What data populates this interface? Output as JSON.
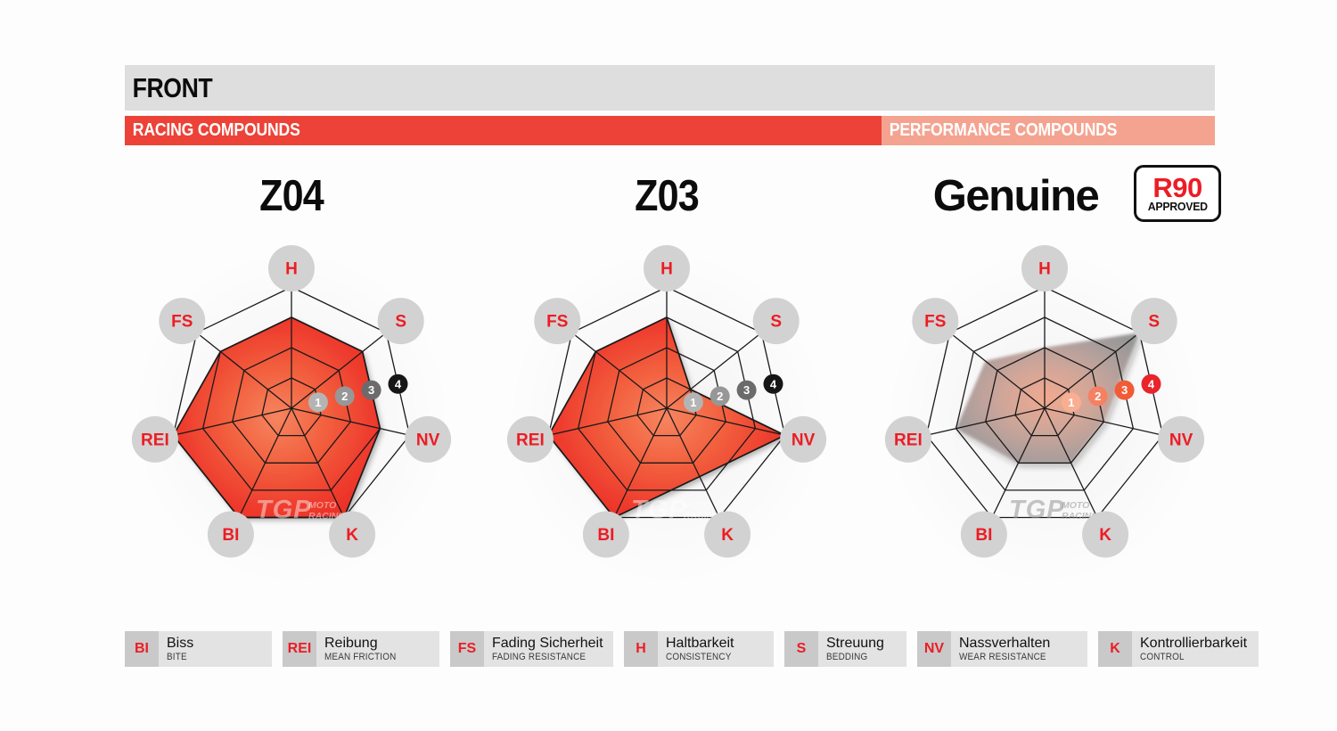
{
  "header": {
    "title": "FRONT",
    "racing_label": "RACING COMPOUNDS",
    "performance_label": "PERFORMANCE COMPOUNDS"
  },
  "r90_badge": {
    "line1": "R90",
    "line2": "APPROVED"
  },
  "watermark": {
    "tgp": "TGP",
    "moto": "MOTO",
    "racing": "RACING"
  },
  "scale_markers": [
    "1",
    "2",
    "3",
    "4"
  ],
  "colors": {
    "header_bar": "#dedede",
    "racing_red": "#ec4237",
    "performance_salmon": "#f4a390",
    "label_red": "#ed1c24",
    "label_circle": "#d2d2d2",
    "web_line": "#1a1a1a",
    "racing_fill_stops": [
      "#f6855f",
      "#f25f3e",
      "#ee3b2d",
      "#e92b24"
    ],
    "performance_fill_stops": [
      "#f2a387",
      "#cda092",
      "#a69795",
      "#8f8f8f"
    ],
    "racing_badges": [
      "#b4b4b4",
      "#979797",
      "#6b6b6b",
      "#161616"
    ],
    "performance_badges": [
      "#f9ae92",
      "#f58163",
      "#f15b36",
      "#e9242a"
    ],
    "racing_watermark": "rgba(255,255,255,0.45)",
    "performance_watermark": "rgba(150,150,150,0.55)"
  },
  "chart_data": [
    {
      "type": "radar",
      "title": "Z04",
      "group": "racing",
      "axes": [
        "H",
        "S",
        "NV",
        "K",
        "BI",
        "REI",
        "FS"
      ],
      "values": [
        3,
        3,
        3,
        4,
        4,
        4,
        3
      ],
      "scale": [
        0,
        4
      ],
      "rings": 4,
      "ring_labels": [
        "1",
        "2",
        "3",
        "4"
      ],
      "legend_position": "none",
      "grid": true
    },
    {
      "type": "radar",
      "title": "Z03",
      "group": "racing",
      "axes": [
        "H",
        "S",
        "NV",
        "K",
        "BI",
        "REI",
        "FS"
      ],
      "values": [
        3,
        1,
        4,
        2.5,
        4,
        4,
        3
      ],
      "scale": [
        0,
        4
      ],
      "rings": 4,
      "ring_labels": [
        "1",
        "2",
        "3",
        "4"
      ],
      "legend_position": "none",
      "grid": true
    },
    {
      "type": "radar",
      "title": "Genuine",
      "group": "performance",
      "approval": "R90 APPROVED",
      "axes": [
        "H",
        "S",
        "NV",
        "K",
        "BI",
        "REI",
        "FS"
      ],
      "values": [
        2,
        4,
        2,
        2,
        2,
        3,
        2.5
      ],
      "scale": [
        0,
        4
      ],
      "rings": 4,
      "ring_labels": [
        "1",
        "2",
        "3",
        "4"
      ],
      "legend_position": "none",
      "grid": true
    }
  ],
  "legend": [
    {
      "abbr": "BI",
      "term_de": "Biss",
      "term_en": "BITE"
    },
    {
      "abbr": "REI",
      "term_de": "Reibung",
      "term_en": "MEAN FRICTION"
    },
    {
      "abbr": "FS",
      "term_de": "Fading Sicherheit",
      "term_en": "FADING RESISTANCE"
    },
    {
      "abbr": "H",
      "term_de": "Haltbarkeit",
      "term_en": "CONSISTENCY"
    },
    {
      "abbr": "S",
      "term_de": "Streuung",
      "term_en": "BEDDING"
    },
    {
      "abbr": "NV",
      "term_de": "Nassverhalten",
      "term_en": "WEAR RESISTANCE"
    },
    {
      "abbr": "K",
      "term_de": "Kontrollierbarkeit",
      "term_en": "CONTROL"
    }
  ]
}
